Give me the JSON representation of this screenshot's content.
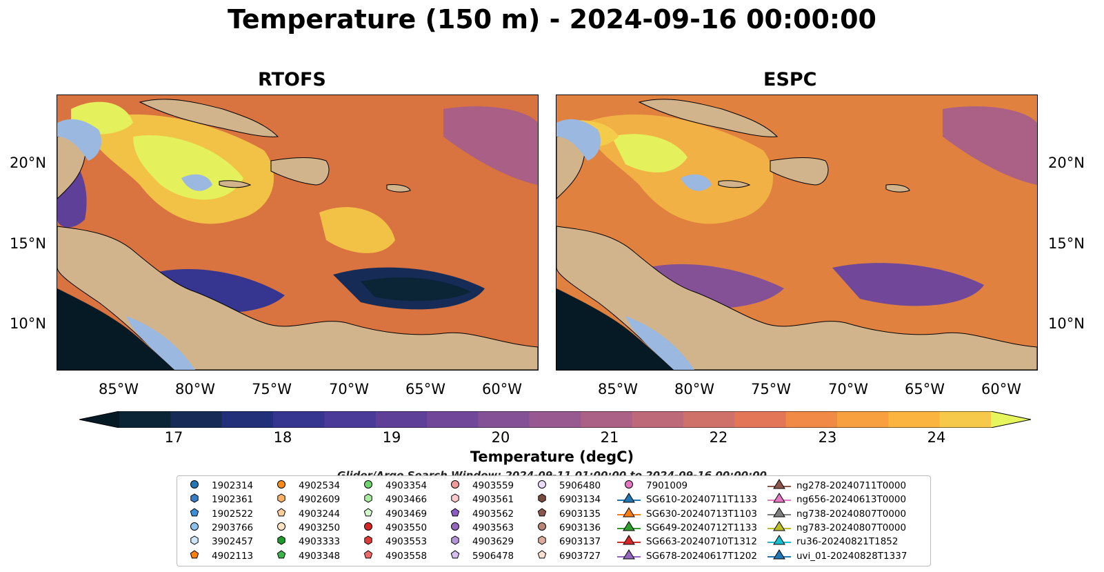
{
  "title": "Temperature (150 m) - 2024-09-16 00:00:00",
  "panels": [
    {
      "title": "RTOFS"
    },
    {
      "title": "ESPC"
    }
  ],
  "lon_ticks": [
    "85°W",
    "80°W",
    "75°W",
    "70°W",
    "65°W",
    "60°W"
  ],
  "lat_ticks": [
    "20°N",
    "15°N",
    "10°N"
  ],
  "colorbar": {
    "label": "Temperature (degC)",
    "ticks": [
      "17",
      "18",
      "19",
      "20",
      "21",
      "22",
      "23",
      "24"
    ],
    "vmin": 16.5,
    "vmax": 24.5,
    "colors": [
      "#0b2537",
      "#172b57",
      "#222f79",
      "#363690",
      "#4b3b99",
      "#5e4099",
      "#714899",
      "#855196",
      "#97598f",
      "#aa6185",
      "#bd697a",
      "#cf7069",
      "#e27656",
      "#f08a46",
      "#f8a03f",
      "#fbb43f",
      "#f6c94a"
    ],
    "extend_low": "#061a26",
    "extend_high": "#e6f55c"
  },
  "search_window": "Glider/Argo Search Window: 2024-09-11 01:00:00 to 2024-09-16 00:00:00",
  "legend": [
    {
      "label": "1902314",
      "marker": "circle",
      "color": "#1f77b4"
    },
    {
      "label": "1902361",
      "marker": "hexagon",
      "color": "#3a7dc4"
    },
    {
      "label": "1902522",
      "marker": "pentagon",
      "color": "#3b8fd6"
    },
    {
      "label": "2903766",
      "marker": "circle",
      "color": "#8ec1ec"
    },
    {
      "label": "3902457",
      "marker": "hexagon",
      "color": "#cfe6fa"
    },
    {
      "label": "4902113",
      "marker": "pentagon",
      "color": "#ff7f0e"
    },
    {
      "label": "4902534",
      "marker": "circle",
      "color": "#ff8c1a"
    },
    {
      "label": "4902609",
      "marker": "hexagon",
      "color": "#ffb266"
    },
    {
      "label": "4903244",
      "marker": "pentagon",
      "color": "#ffcf99"
    },
    {
      "label": "4903250",
      "marker": "circle",
      "color": "#ffe4c4"
    },
    {
      "label": "4903333",
      "marker": "hexagon",
      "color": "#1f9a2c"
    },
    {
      "label": "4903348",
      "marker": "pentagon",
      "color": "#3cb44b"
    },
    {
      "label": "4903354",
      "marker": "circle",
      "color": "#6fd36f"
    },
    {
      "label": "4903466",
      "marker": "hexagon",
      "color": "#a9eba0"
    },
    {
      "label": "4903469",
      "marker": "pentagon",
      "color": "#d5f7d0"
    },
    {
      "label": "4903550",
      "marker": "circle",
      "color": "#d62728"
    },
    {
      "label": "4903553",
      "marker": "hexagon",
      "color": "#e03b3b"
    },
    {
      "label": "4903558",
      "marker": "pentagon",
      "color": "#f06a6a"
    },
    {
      "label": "4903559",
      "marker": "circle",
      "color": "#f59a9a"
    },
    {
      "label": "4903561",
      "marker": "hexagon",
      "color": "#fccaca"
    },
    {
      "label": "4903562",
      "marker": "pentagon",
      "color": "#8c5cc6"
    },
    {
      "label": "4903563",
      "marker": "circle",
      "color": "#9467bd"
    },
    {
      "label": "4903629",
      "marker": "hexagon",
      "color": "#b495dc"
    },
    {
      "label": "5906478",
      "marker": "pentagon",
      "color": "#d4bff0"
    },
    {
      "label": "5906480",
      "marker": "circle",
      "color": "#ecdcfb"
    },
    {
      "label": "6903134",
      "marker": "hexagon",
      "color": "#7a4a3a"
    },
    {
      "label": "6903135",
      "marker": "pentagon",
      "color": "#8c564b"
    },
    {
      "label": "6903136",
      "marker": "circle",
      "color": "#b98575"
    },
    {
      "label": "6903137",
      "marker": "hexagon",
      "color": "#dcab9c"
    },
    {
      "label": "6903727",
      "marker": "pentagon",
      "color": "#fde0d2"
    },
    {
      "label": "7901009",
      "marker": "circle",
      "color": "#e377c2"
    },
    {
      "label": "SG610-20240711T1133",
      "marker": "triangle",
      "color": "#1f77b4"
    },
    {
      "label": "SG630-20240713T1103",
      "marker": "triangle",
      "color": "#ff7f0e"
    },
    {
      "label": "SG649-20240712T1133",
      "marker": "triangle",
      "color": "#2ca02c"
    },
    {
      "label": "SG663-20240710T1312",
      "marker": "triangle",
      "color": "#d62728"
    },
    {
      "label": "SG678-20240617T1202",
      "marker": "triangle",
      "color": "#9467bd"
    },
    {
      "label": "ng278-20240711T0000",
      "marker": "triangle",
      "color": "#8c564b"
    },
    {
      "label": "ng656-20240613T0000",
      "marker": "triangle",
      "color": "#e377c2"
    },
    {
      "label": "ng738-20240807T0000",
      "marker": "triangle",
      "color": "#7f7f7f"
    },
    {
      "label": "ng783-20240807T0000",
      "marker": "triangle",
      "color": "#bcbd22"
    },
    {
      "label": "ru36-20240821T1852",
      "marker": "triangle",
      "color": "#17becf"
    },
    {
      "label": "uvi_01-20240828T1337",
      "marker": "triangle",
      "color": "#1f77b4"
    }
  ]
}
